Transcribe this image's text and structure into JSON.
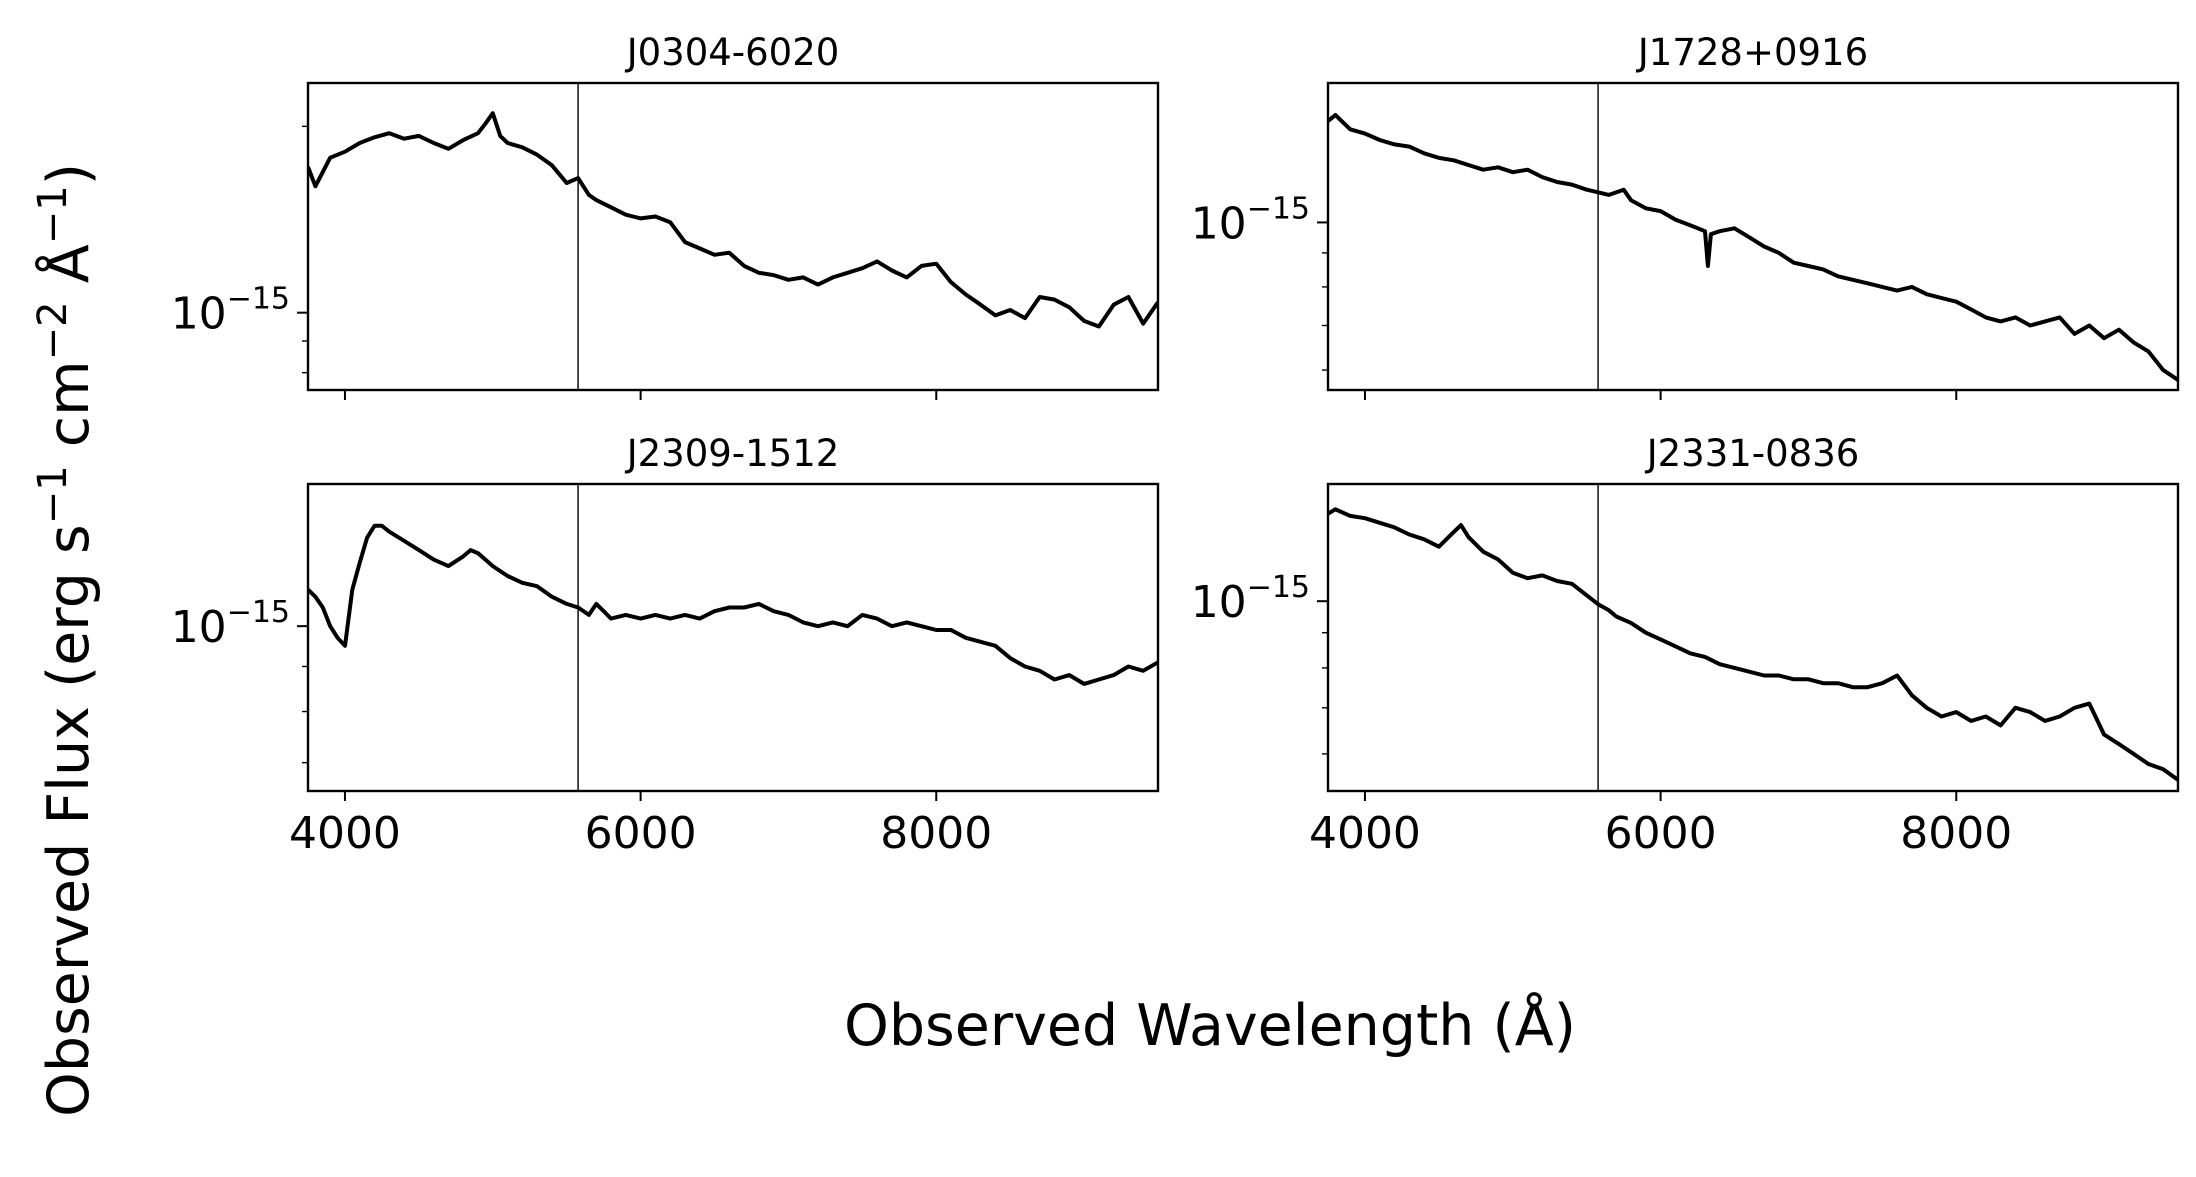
{
  "chart_data": {
    "type": "line",
    "xlabel": "Observed Wavelength (Å)",
    "ylabel": {
      "prefix": "Observed Flux (erg s",
      "exp1": "−1",
      "mid1": " cm",
      "exp2": "−2",
      "mid2": " Å",
      "exp3": "−1",
      "suffix": ")"
    },
    "xlim": [
      3750,
      9500
    ],
    "xticks": [
      4000,
      6000,
      8000
    ],
    "xtick_labels": [
      "4000",
      "6000",
      "8000"
    ],
    "vertical_line_x": 5577,
    "ytick_label": {
      "base": "10",
      "exponent": "−15"
    },
    "panels": [
      {
        "title": "J0304-6020",
        "ylim": [
          7.5e-16,
          2.35e-15
        ],
        "labeled_ytick": 1e-15,
        "x": [
          3750,
          3800,
          3900,
          4000,
          4100,
          4200,
          4300,
          4400,
          4500,
          4600,
          4700,
          4800,
          4900,
          4950,
          5000,
          5050,
          5100,
          5200,
          5300,
          5400,
          5500,
          5577,
          5650,
          5700,
          5800,
          5900,
          6000,
          6100,
          6200,
          6300,
          6400,
          6500,
          6600,
          6700,
          6800,
          6900,
          7000,
          7100,
          7200,
          7300,
          7400,
          7500,
          7600,
          7700,
          7800,
          7900,
          8000,
          8100,
          8200,
          8300,
          8400,
          8500,
          8600,
          8700,
          8800,
          8900,
          9000,
          9100,
          9200,
          9300,
          9400,
          9500
        ],
        "values": [
          1.72e-15,
          1.6e-15,
          1.78e-15,
          1.82e-15,
          1.88e-15,
          1.92e-15,
          1.95e-15,
          1.91e-15,
          1.93e-15,
          1.88e-15,
          1.84e-15,
          1.9e-15,
          1.95e-15,
          2.02e-15,
          2.1e-15,
          1.93e-15,
          1.88e-15,
          1.85e-15,
          1.8e-15,
          1.73e-15,
          1.62e-15,
          1.65e-15,
          1.55e-15,
          1.52e-15,
          1.48e-15,
          1.44e-15,
          1.42e-15,
          1.43e-15,
          1.4e-15,
          1.3e-15,
          1.27e-15,
          1.24e-15,
          1.25e-15,
          1.19e-15,
          1.16e-15,
          1.15e-15,
          1.13e-15,
          1.14e-15,
          1.11e-15,
          1.14e-15,
          1.16e-15,
          1.18e-15,
          1.21e-15,
          1.17e-15,
          1.14e-15,
          1.19e-15,
          1.2e-15,
          1.12e-15,
          1.07e-15,
          1.03e-15,
          9.9e-16,
          1.01e-15,
          9.8e-16,
          1.06e-15,
          1.05e-15,
          1.02e-15,
          9.7e-16,
          9.5e-16,
          1.03e-15,
          1.06e-15,
          9.6e-16,
          1.04e-15
        ]
      },
      {
        "title": "J1728+0916",
        "ylim": [
          5.6e-16,
          1.62e-15
        ],
        "labeled_ytick": 1e-15,
        "x": [
          3750,
          3800,
          3900,
          4000,
          4100,
          4200,
          4300,
          4400,
          4500,
          4600,
          4700,
          4800,
          4900,
          5000,
          5100,
          5200,
          5300,
          5400,
          5500,
          5577,
          5650,
          5750,
          5800,
          5900,
          6000,
          6100,
          6200,
          6300,
          6320,
          6340,
          6400,
          6500,
          6600,
          6700,
          6800,
          6900,
          7000,
          7100,
          7200,
          7300,
          7400,
          7500,
          7600,
          7700,
          7800,
          7900,
          8000,
          8100,
          8200,
          8300,
          8400,
          8500,
          8600,
          8700,
          8800,
          8900,
          9000,
          9100,
          9200,
          9300,
          9400,
          9500
        ],
        "values": [
          1.42e-15,
          1.45e-15,
          1.38e-15,
          1.36e-15,
          1.33e-15,
          1.31e-15,
          1.3e-15,
          1.27e-15,
          1.25e-15,
          1.24e-15,
          1.22e-15,
          1.2e-15,
          1.21e-15,
          1.19e-15,
          1.2e-15,
          1.17e-15,
          1.15e-15,
          1.14e-15,
          1.12e-15,
          1.11e-15,
          1.1e-15,
          1.12e-15,
          1.08e-15,
          1.05e-15,
          1.04e-15,
          1.01e-15,
          9.9e-16,
          9.7e-16,
          8.6e-16,
          9.6e-16,
          9.7e-16,
          9.8e-16,
          9.5e-16,
          9.2e-16,
          9e-16,
          8.7e-16,
          8.6e-16,
          8.5e-16,
          8.3e-16,
          8.2e-16,
          8.1e-16,
          8e-16,
          7.9e-16,
          8e-16,
          7.8e-16,
          7.7e-16,
          7.6e-16,
          7.4e-16,
          7.2e-16,
          7.1e-16,
          7.2e-16,
          7e-16,
          7.1e-16,
          7.2e-16,
          6.8e-16,
          7e-16,
          6.7e-16,
          6.9e-16,
          6.6e-16,
          6.4e-16,
          6e-16,
          5.8e-16
        ]
      },
      {
        "title": "J2309-1512",
        "ylim": [
          6.5e-16,
          1.45e-15
        ],
        "labeled_ytick": 1e-15,
        "x": [
          3750,
          3800,
          3850,
          3900,
          3950,
          4000,
          4050,
          4100,
          4150,
          4200,
          4250,
          4300,
          4400,
          4500,
          4600,
          4700,
          4800,
          4850,
          4900,
          4950,
          5000,
          5100,
          5200,
          5300,
          5400,
          5500,
          5577,
          5650,
          5700,
          5750,
          5800,
          5900,
          6000,
          6100,
          6200,
          6300,
          6400,
          6500,
          6600,
          6700,
          6800,
          6900,
          7000,
          7100,
          7200,
          7300,
          7400,
          7500,
          7600,
          7700,
          7800,
          7900,
          8000,
          8100,
          8200,
          8300,
          8400,
          8500,
          8600,
          8700,
          8800,
          8900,
          9000,
          9100,
          9200,
          9300,
          9400,
          9500
        ],
        "values": [
          1.1e-15,
          1.08e-15,
          1.05e-15,
          1e-15,
          9.7e-16,
          9.5e-16,
          1.1e-15,
          1.18e-15,
          1.26e-15,
          1.3e-15,
          1.3e-15,
          1.28e-15,
          1.25e-15,
          1.22e-15,
          1.19e-15,
          1.17e-15,
          1.2e-15,
          1.22e-15,
          1.21e-15,
          1.19e-15,
          1.17e-15,
          1.14e-15,
          1.12e-15,
          1.11e-15,
          1.08e-15,
          1.06e-15,
          1.05e-15,
          1.03e-15,
          1.06e-15,
          1.04e-15,
          1.02e-15,
          1.03e-15,
          1.02e-15,
          1.03e-15,
          1.02e-15,
          1.03e-15,
          1.02e-15,
          1.04e-15,
          1.05e-15,
          1.05e-15,
          1.06e-15,
          1.04e-15,
          1.03e-15,
          1.01e-15,
          1e-15,
          1.01e-15,
          1e-15,
          1.03e-15,
          1.02e-15,
          1e-15,
          1.01e-15,
          1e-15,
          9.9e-16,
          9.9e-16,
          9.7e-16,
          9.6e-16,
          9.5e-16,
          9.2e-16,
          9e-16,
          8.9e-16,
          8.7e-16,
          8.8e-16,
          8.6e-16,
          8.7e-16,
          8.8e-16,
          9e-16,
          8.9e-16,
          9.1e-16
        ]
      },
      {
        "title": "J2331-0836",
        "ylim": [
          5.3e-16,
          1.48e-15
        ],
        "labeled_ytick": 1e-15,
        "x": [
          3750,
          3800,
          3900,
          4000,
          4100,
          4200,
          4300,
          4400,
          4500,
          4600,
          4650,
          4700,
          4800,
          4900,
          5000,
          5100,
          5200,
          5300,
          5400,
          5500,
          5577,
          5650,
          5700,
          5800,
          5900,
          6000,
          6100,
          6200,
          6300,
          6400,
          6500,
          6600,
          6700,
          6800,
          6900,
          7000,
          7100,
          7200,
          7300,
          7400,
          7500,
          7600,
          7700,
          7800,
          7900,
          8000,
          8100,
          8200,
          8300,
          8400,
          8500,
          8600,
          8700,
          8800,
          8900,
          9000,
          9100,
          9200,
          9300,
          9400,
          9500
        ],
        "values": [
          1.34e-15,
          1.36e-15,
          1.33e-15,
          1.32e-15,
          1.3e-15,
          1.28e-15,
          1.25e-15,
          1.23e-15,
          1.2e-15,
          1.26e-15,
          1.29e-15,
          1.24e-15,
          1.18e-15,
          1.15e-15,
          1.1e-15,
          1.08e-15,
          1.09e-15,
          1.07e-15,
          1.06e-15,
          1.02e-15,
          9.9e-16,
          9.7e-16,
          9.5e-16,
          9.3e-16,
          9e-16,
          8.8e-16,
          8.6e-16,
          8.4e-16,
          8.3e-16,
          8.1e-16,
          8e-16,
          7.9e-16,
          7.8e-16,
          7.8e-16,
          7.7e-16,
          7.7e-16,
          7.6e-16,
          7.6e-16,
          7.5e-16,
          7.5e-16,
          7.6e-16,
          7.8e-16,
          7.3e-16,
          7e-16,
          6.8e-16,
          6.9e-16,
          6.7e-16,
          6.8e-16,
          6.6e-16,
          7e-16,
          6.9e-16,
          6.7e-16,
          6.8e-16,
          7e-16,
          7.1e-16,
          6.4e-16,
          6.2e-16,
          6e-16,
          5.8e-16,
          5.7e-16,
          5.5e-16
        ]
      }
    ]
  }
}
